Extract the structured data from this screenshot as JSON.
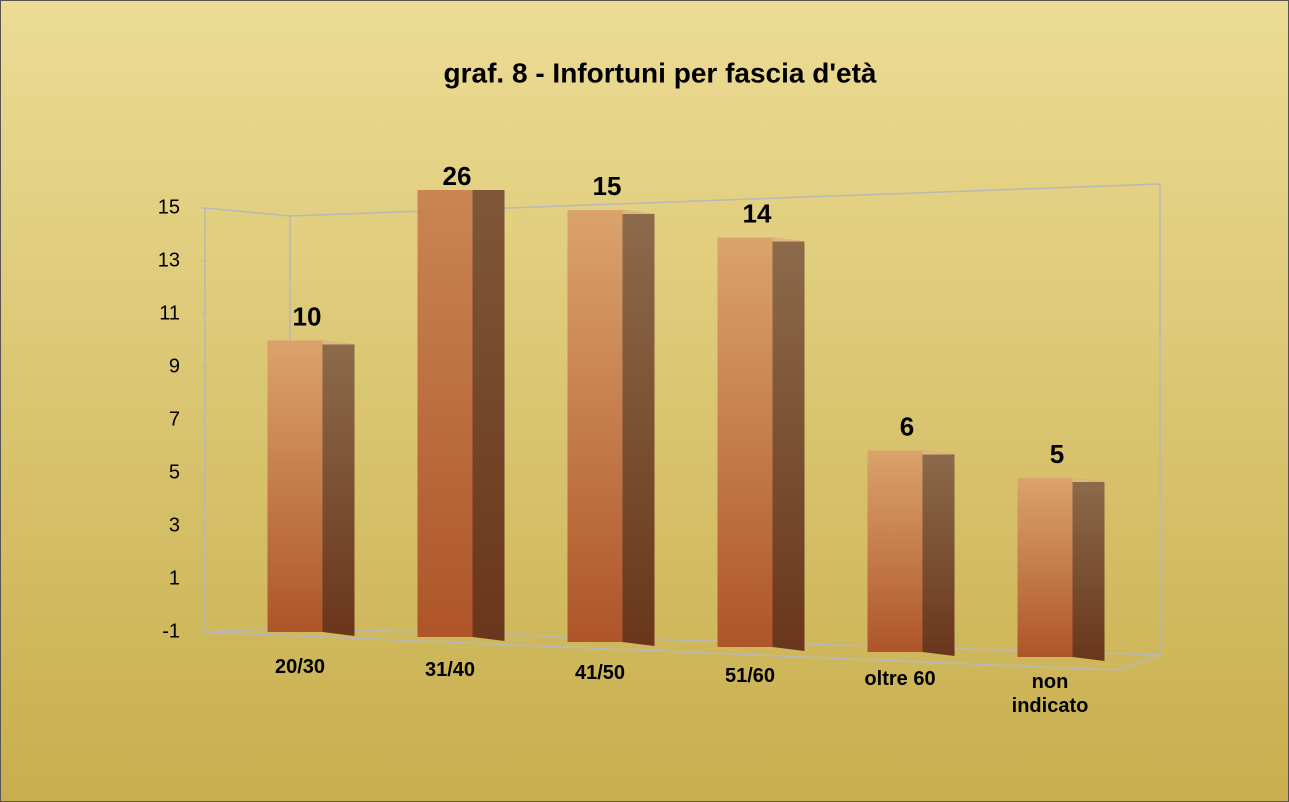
{
  "chart_data": {
    "type": "bar3d",
    "title": "graf. 8 - Infortuni per fascia d'età",
    "categories": [
      "20/30",
      "31/40",
      "41/50",
      "51/60",
      "oltre 60",
      "non indicato"
    ],
    "values": [
      10,
      26,
      15,
      14,
      6,
      5
    ],
    "color": "#c97c48",
    "ylim": [
      -1,
      15
    ],
    "yticks": [
      -1,
      1,
      3,
      5,
      7,
      9,
      11,
      13,
      15
    ],
    "grid": false
  }
}
